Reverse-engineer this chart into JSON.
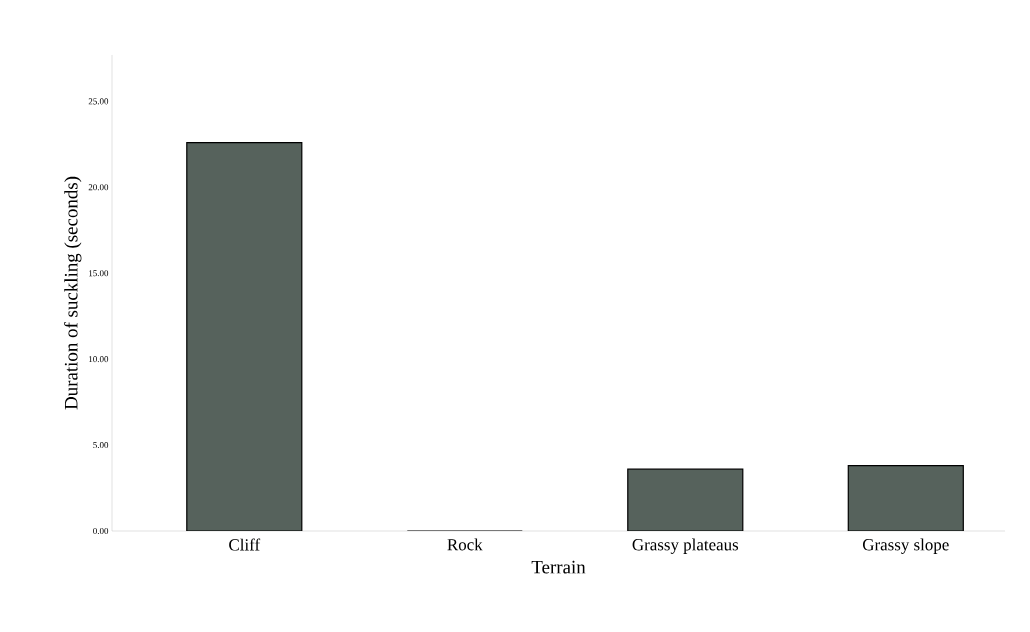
{
  "chart_data": {
    "type": "bar",
    "xlabel": "Terrain",
    "ylabel": "Duration of suckling (seconds)",
    "categories": [
      "Cliff",
      "Rock",
      "Grassy plateaus",
      "Grassy slope"
    ],
    "values": [
      22.6,
      0,
      3.6,
      3.8
    ],
    "color": "#56625c",
    "ylim": [
      0,
      27.7
    ],
    "yticks": [
      {
        "value": 0,
        "label": "0.00"
      },
      {
        "value": 5,
        "label": "5.00"
      },
      {
        "value": 10,
        "label": "10.00"
      },
      {
        "value": 15,
        "label": "15.00"
      },
      {
        "value": 20,
        "label": "20.00"
      },
      {
        "value": 25,
        "label": "25.00"
      }
    ],
    "grid": false
  }
}
